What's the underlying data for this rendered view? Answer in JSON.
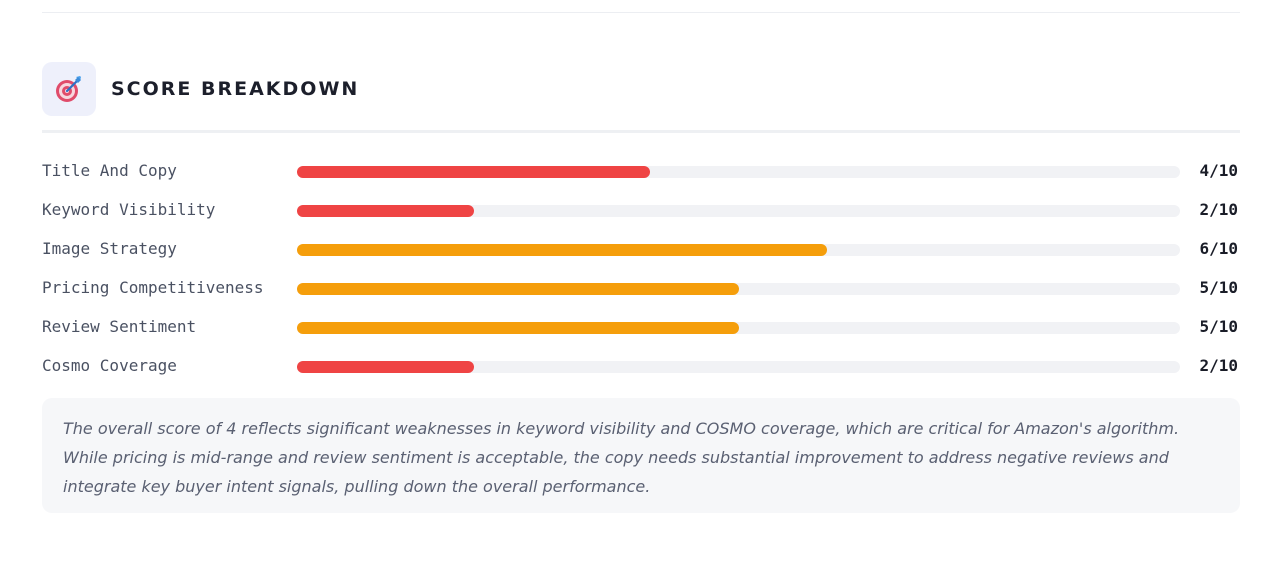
{
  "section": {
    "title": "SCORE BREAKDOWN",
    "icon": "target-icon"
  },
  "scores": [
    {
      "label": "Title And Copy",
      "value": "4/10",
      "score": 4,
      "max": 10,
      "color": "#ef4444"
    },
    {
      "label": "Keyword Visibility",
      "value": "2/10",
      "score": 2,
      "max": 10,
      "color": "#ef4444"
    },
    {
      "label": "Image Strategy",
      "value": "6/10",
      "score": 6,
      "max": 10,
      "color": "#f59e0b"
    },
    {
      "label": "Pricing Competitiveness",
      "value": "5/10",
      "score": 5,
      "max": 10,
      "color": "#f59e0b"
    },
    {
      "label": "Review Sentiment",
      "value": "5/10",
      "score": 5,
      "max": 10,
      "color": "#f59e0b"
    },
    {
      "label": "Cosmo Coverage",
      "value": "2/10",
      "score": 2,
      "max": 10,
      "color": "#ef4444"
    }
  ],
  "summary": {
    "text": "The overall score of 4 reflects significant weaknesses in keyword visibility and COSMO coverage, which are critical for Amazon's algorithm. While pricing is mid-range and review sentiment is acceptable, the copy needs substantial improvement to address negative reviews and integrate key buyer intent signals, pulling down the overall performance."
  },
  "colors": {
    "low": "#ef4444",
    "mid": "#f59e0b",
    "track": "#f1f2f5"
  }
}
